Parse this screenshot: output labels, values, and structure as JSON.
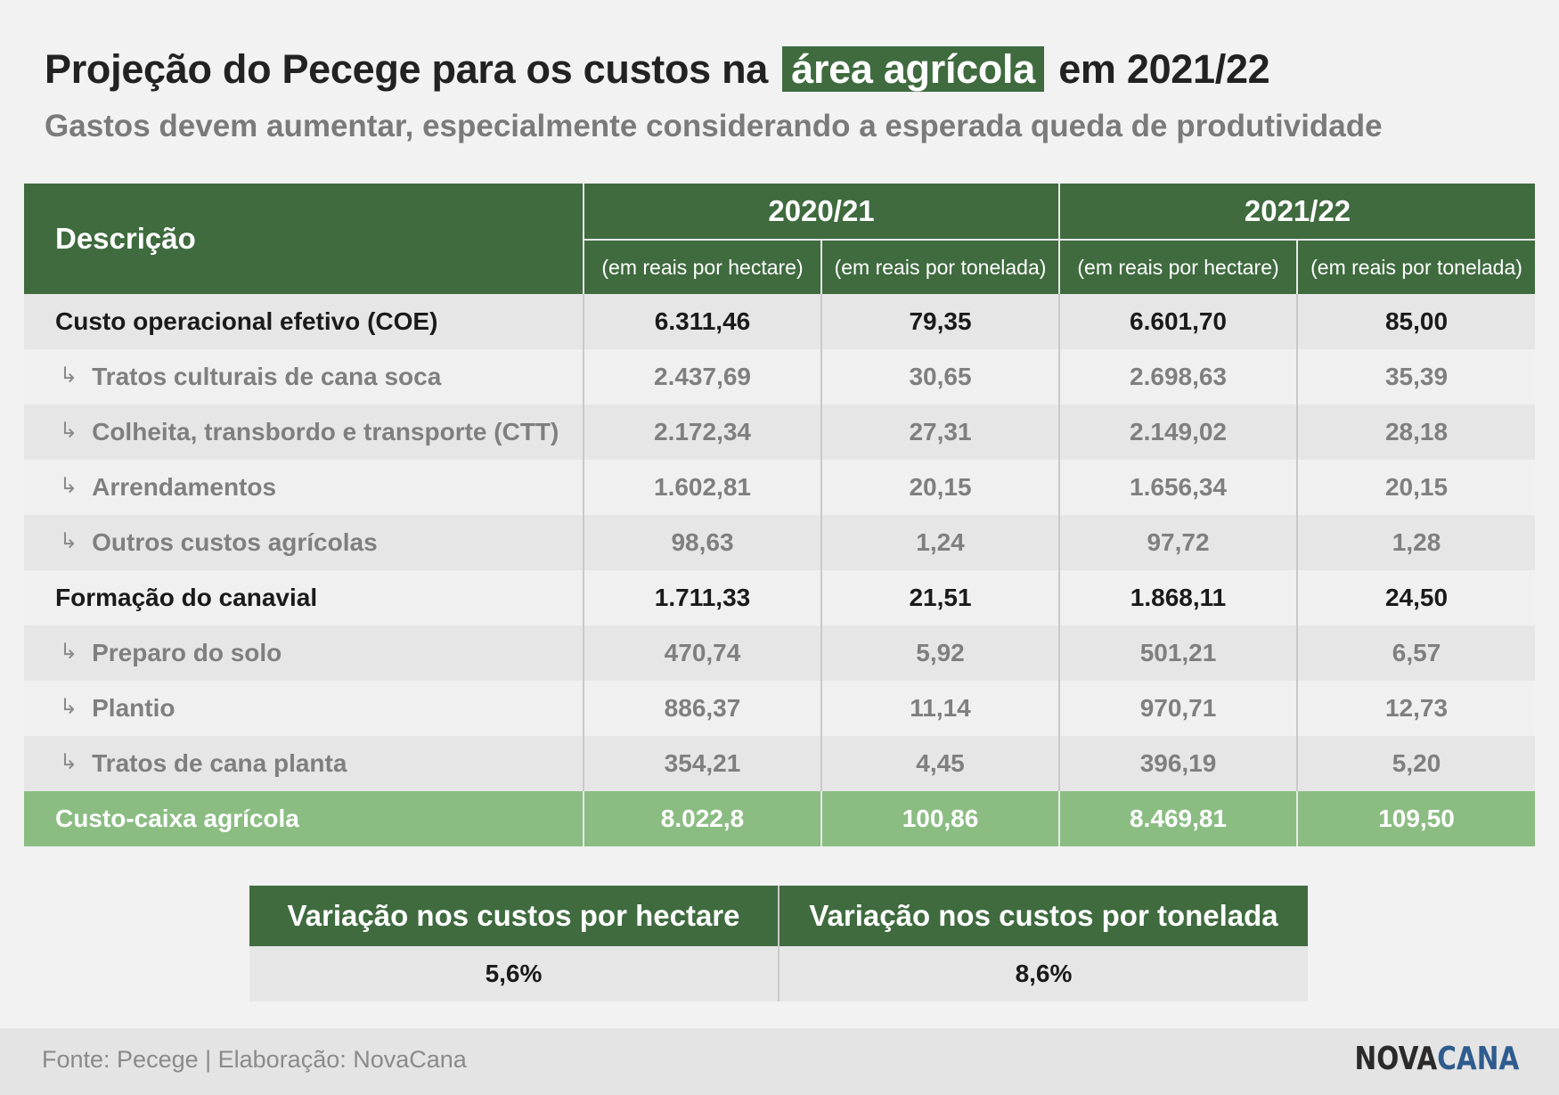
{
  "title": {
    "before": "Projeção do Pecege para os custos na",
    "highlight": "área agrícola",
    "after": "em 2021/22"
  },
  "subtitle": "Gastos devem aumentar, especialmente considerando a esperada queda de produtividade",
  "table": {
    "desc_header": "Descrição",
    "years": [
      "2020/21",
      "2021/22"
    ],
    "units": [
      "(em reais por hectare)",
      "(em reais por tonelada)",
      "(em reais por hectare)",
      "(em reais por tonelada)"
    ],
    "rows": [
      {
        "label": "Custo operacional efetivo (COE)",
        "values": [
          "6.311,46",
          "79,35",
          "6.601,70",
          "85,00"
        ]
      },
      {
        "label": "Tratos culturais de cana soca",
        "values": [
          "2.437,69",
          "30,65",
          "2.698,63",
          "35,39"
        ]
      },
      {
        "label": "Colheita, transbordo e transporte (CTT)",
        "values": [
          "2.172,34",
          "27,31",
          "2.149,02",
          "28,18"
        ]
      },
      {
        "label": "Arrendamentos",
        "values": [
          "1.602,81",
          "20,15",
          "1.656,34",
          "20,15"
        ]
      },
      {
        "label": "Outros custos agrícolas",
        "values": [
          "98,63",
          "1,24",
          "97,72",
          "1,28"
        ]
      },
      {
        "label": "Formação do canavial",
        "values": [
          "1.711,33",
          "21,51",
          "1.868,11",
          "24,50"
        ]
      },
      {
        "label": "Preparo do solo",
        "values": [
          "470,74",
          "5,92",
          "501,21",
          "6,57"
        ]
      },
      {
        "label": "Plantio",
        "values": [
          "886,37",
          "11,14",
          "970,71",
          "12,73"
        ]
      },
      {
        "label": "Tratos de cana planta",
        "values": [
          "354,21",
          "4,45",
          "396,19",
          "5,20"
        ]
      },
      {
        "label": "Custo-caixa agrícola",
        "values": [
          "8.022,8",
          "100,86",
          "8.469,81",
          "109,50"
        ]
      }
    ]
  },
  "variation": {
    "headers": [
      "Variação nos custos por hectare",
      "Variação nos custos por tonelada"
    ],
    "values": [
      "5,6%",
      "8,6%"
    ]
  },
  "footer": {
    "source": "Fonte: Pecege | Elaboração: NovaCana",
    "logo_part1": "NOVA",
    "logo_part2": "CANA"
  }
}
